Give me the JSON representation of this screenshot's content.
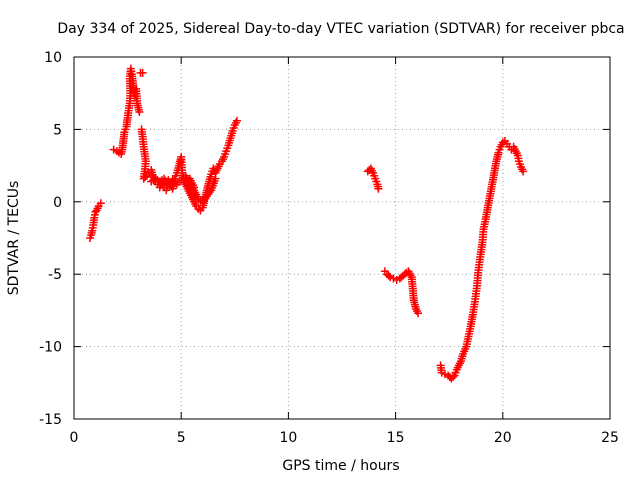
{
  "chart_data": {
    "type": "scatter",
    "title": "Day 334 of 2025, Sidereal Day-to-day VTEC variation (SDTVAR) for receiver pbca",
    "xlabel": "GPS time / hours",
    "ylabel": "SDTVAR / TECUs",
    "xlim": [
      0,
      25
    ],
    "ylim": [
      -15,
      10
    ],
    "xticks": [
      0,
      5,
      10,
      15,
      20,
      25
    ],
    "yticks": [
      -15,
      -10,
      -5,
      0,
      5,
      10
    ],
    "xtick_labels": [
      "0",
      "5",
      "10",
      "15",
      "20",
      "25"
    ],
    "ytick_labels": [
      "-15",
      "-10",
      "-5",
      "0",
      "5",
      "10"
    ],
    "grid": true,
    "marker": "+",
    "marker_color": "#ff0000",
    "series": [
      {
        "name": "SDTVAR",
        "points": [
          [
            0.75,
            -2.5
          ],
          [
            0.8,
            -2.3
          ],
          [
            0.85,
            -2.0
          ],
          [
            0.9,
            -1.6
          ],
          [
            0.95,
            -1.1
          ],
          [
            1.0,
            -0.7
          ],
          [
            1.05,
            -0.6
          ],
          [
            1.15,
            -0.3
          ],
          [
            1.25,
            -0.1
          ],
          [
            1.85,
            3.6
          ],
          [
            2.0,
            3.5
          ],
          [
            2.1,
            3.4
          ],
          [
            2.2,
            3.3
          ],
          [
            2.25,
            3.6
          ],
          [
            2.3,
            4.2
          ],
          [
            2.35,
            4.8
          ],
          [
            2.45,
            5.2
          ],
          [
            2.5,
            5.8
          ],
          [
            2.55,
            6.3
          ],
          [
            2.6,
            6.8
          ],
          [
            2.63,
            7.5
          ],
          [
            2.6,
            8.5
          ],
          [
            2.65,
            9.2
          ],
          [
            2.7,
            8.8
          ],
          [
            2.75,
            8.2
          ],
          [
            2.8,
            7.6
          ],
          [
            2.85,
            7.3
          ],
          [
            2.9,
            7.8
          ],
          [
            2.95,
            6.8
          ],
          [
            3.05,
            6.2
          ],
          [
            3.1,
            8.9
          ],
          [
            3.2,
            8.9
          ],
          [
            3.15,
            5.0
          ],
          [
            3.2,
            4.5
          ],
          [
            3.25,
            3.8
          ],
          [
            3.3,
            3.3
          ],
          [
            3.35,
            2.8
          ],
          [
            3.3,
            2.1
          ],
          [
            3.25,
            1.6
          ],
          [
            3.4,
            1.8
          ],
          [
            3.5,
            2.0
          ],
          [
            3.6,
            2.2
          ],
          [
            3.7,
            1.7
          ],
          [
            3.8,
            1.4
          ],
          [
            3.9,
            1.2
          ],
          [
            4.0,
            1.0
          ],
          [
            4.1,
            1.3
          ],
          [
            4.2,
            1.0
          ],
          [
            4.3,
            0.8
          ],
          [
            4.4,
            1.5
          ],
          [
            4.5,
            1.2
          ],
          [
            4.6,
            0.9
          ],
          [
            4.7,
            1.6
          ],
          [
            4.8,
            2.0
          ],
          [
            4.9,
            2.5
          ],
          [
            5.0,
            3.1
          ],
          [
            5.05,
            2.0
          ],
          [
            5.1,
            1.5
          ],
          [
            5.2,
            1.2
          ],
          [
            5.3,
            0.9
          ],
          [
            5.4,
            0.6
          ],
          [
            5.5,
            0.3
          ],
          [
            5.6,
            0.0
          ],
          [
            5.7,
            -0.3
          ],
          [
            5.8,
            -0.5
          ],
          [
            5.9,
            -0.6
          ],
          [
            6.0,
            -0.4
          ],
          [
            6.1,
            0.2
          ],
          [
            6.2,
            0.8
          ],
          [
            6.3,
            1.4
          ],
          [
            6.4,
            1.9
          ],
          [
            6.5,
            2.3
          ],
          [
            6.6,
            2.0
          ],
          [
            6.7,
            2.3
          ],
          [
            6.8,
            2.6
          ],
          [
            6.9,
            2.8
          ],
          [
            7.0,
            3.1
          ],
          [
            7.1,
            3.5
          ],
          [
            7.2,
            3.9
          ],
          [
            7.3,
            4.4
          ],
          [
            7.4,
            4.9
          ],
          [
            7.5,
            5.3
          ],
          [
            7.6,
            5.6
          ],
          [
            3.6,
            1.4
          ],
          [
            3.8,
            1.6
          ],
          [
            4.0,
            1.4
          ],
          [
            4.2,
            1.6
          ],
          [
            4.4,
            1.2
          ],
          [
            4.6,
            1.5
          ],
          [
            4.8,
            1.2
          ],
          [
            5.0,
            1.5
          ],
          [
            5.2,
            1.8
          ],
          [
            5.4,
            1.2
          ],
          [
            5.6,
            0.8
          ],
          [
            5.8,
            0.2
          ],
          [
            6.0,
            0.0
          ],
          [
            6.2,
            0.4
          ],
          [
            6.4,
            0.8
          ],
          [
            6.6,
            1.6
          ],
          [
            5.4,
            1.6
          ],
          [
            5.6,
            1.0
          ],
          [
            13.7,
            2.1
          ],
          [
            13.85,
            2.3
          ],
          [
            13.95,
            2.0
          ],
          [
            14.05,
            1.6
          ],
          [
            14.15,
            1.2
          ],
          [
            14.2,
            0.9
          ],
          [
            14.5,
            -4.8
          ],
          [
            14.6,
            -5.0
          ],
          [
            14.75,
            -5.2
          ],
          [
            14.9,
            -5.3
          ],
          [
            15.05,
            -5.4
          ],
          [
            15.2,
            -5.3
          ],
          [
            15.35,
            -5.1
          ],
          [
            15.5,
            -4.9
          ],
          [
            15.6,
            -4.8
          ],
          [
            15.75,
            -5.2
          ],
          [
            15.8,
            -6.0
          ],
          [
            15.85,
            -6.8
          ],
          [
            15.95,
            -7.4
          ],
          [
            16.05,
            -7.7
          ],
          [
            17.1,
            -11.3
          ],
          [
            17.15,
            -11.8
          ],
          [
            17.3,
            -11.9
          ],
          [
            17.45,
            -12.0
          ],
          [
            17.6,
            -12.2
          ],
          [
            17.75,
            -12.0
          ],
          [
            17.85,
            -11.6
          ],
          [
            17.95,
            -11.3
          ],
          [
            18.05,
            -11.0
          ],
          [
            18.15,
            -10.5
          ],
          [
            18.3,
            -10.0
          ],
          [
            18.4,
            -9.3
          ],
          [
            18.5,
            -8.6
          ],
          [
            18.6,
            -7.8
          ],
          [
            18.7,
            -6.9
          ],
          [
            18.8,
            -5.8
          ],
          [
            18.85,
            -4.9
          ],
          [
            18.95,
            -3.8
          ],
          [
            19.05,
            -2.8
          ],
          [
            19.1,
            -1.9
          ],
          [
            19.2,
            -1.2
          ],
          [
            19.3,
            -0.4
          ],
          [
            19.4,
            0.4
          ],
          [
            19.5,
            1.2
          ],
          [
            19.6,
            2.0
          ],
          [
            19.7,
            2.8
          ],
          [
            19.8,
            3.4
          ],
          [
            19.9,
            3.8
          ],
          [
            20.0,
            4.1
          ],
          [
            20.1,
            4.2
          ],
          [
            20.2,
            4.0
          ],
          [
            20.3,
            3.8
          ],
          [
            20.4,
            3.6
          ],
          [
            20.5,
            3.8
          ],
          [
            20.6,
            3.5
          ],
          [
            20.7,
            3.2
          ],
          [
            20.75,
            2.8
          ],
          [
            20.85,
            2.4
          ],
          [
            20.95,
            2.1
          ]
        ]
      }
    ]
  }
}
